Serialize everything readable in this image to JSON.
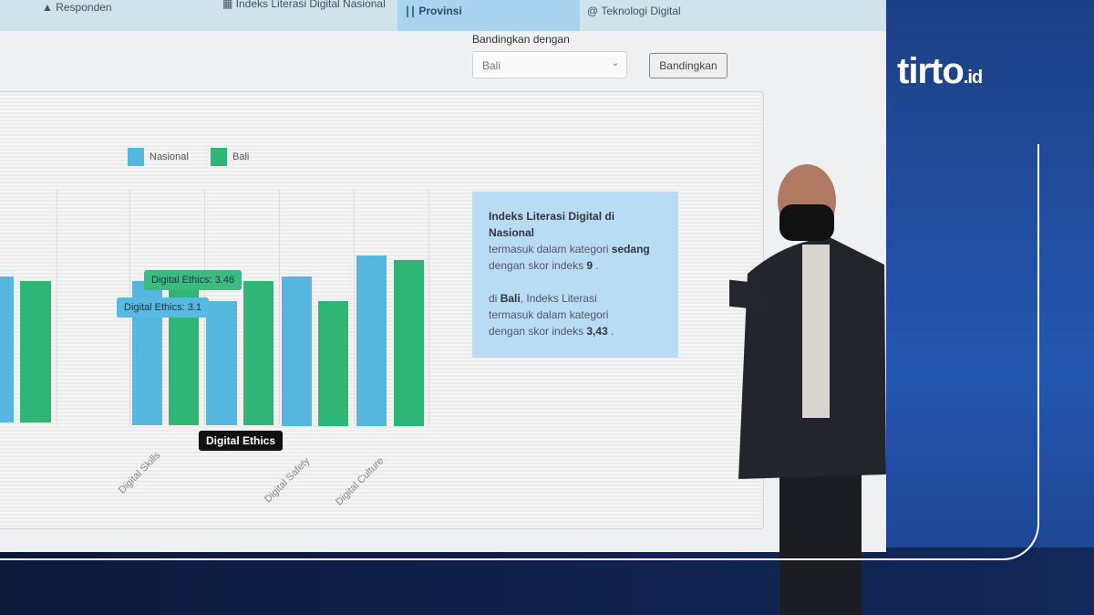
{
  "tabs": [
    {
      "label": "Responden"
    },
    {
      "label": "Indeks Literasi Digital Nasional"
    },
    {
      "label": "Provinsi"
    },
    {
      "label": "Teknologi Digital"
    }
  ],
  "compare": {
    "label": "Bandingkan dengan",
    "selected": "Bali",
    "button": "Bandingkan"
  },
  "legend": [
    {
      "name": "Nasional",
      "color": "#55b6de"
    },
    {
      "name": "Bali",
      "color": "#2fb677"
    }
  ],
  "chart": {
    "categories": [
      "Digital Skills",
      "Digital Ethics",
      "Digital Safety",
      "Digital Culture"
    ],
    "tooltip_bali": "Digital Ethics: 3.46",
    "tooltip_nasional": "Digital Ethics: 3.1",
    "hover_label": "Digital Ethics"
  },
  "info": {
    "title": "Indeks Literasi Digital di Nasional",
    "line1a": "termasuk dalam kategori ",
    "line1b": "sedang",
    "line2a": "dengan skor indeks ",
    "line2b": "9",
    "p2a": "di ",
    "p2b": "Bali",
    ", p2c": "",
    "p2c": ", Indeks Literasi",
    "p2d": "termasuk dalam kategori",
    "p2e": "dengan skor indeks ",
    "p2f": "3,43"
  },
  "brand": {
    "name": "tirto",
    "suffix": ".id"
  }
}
